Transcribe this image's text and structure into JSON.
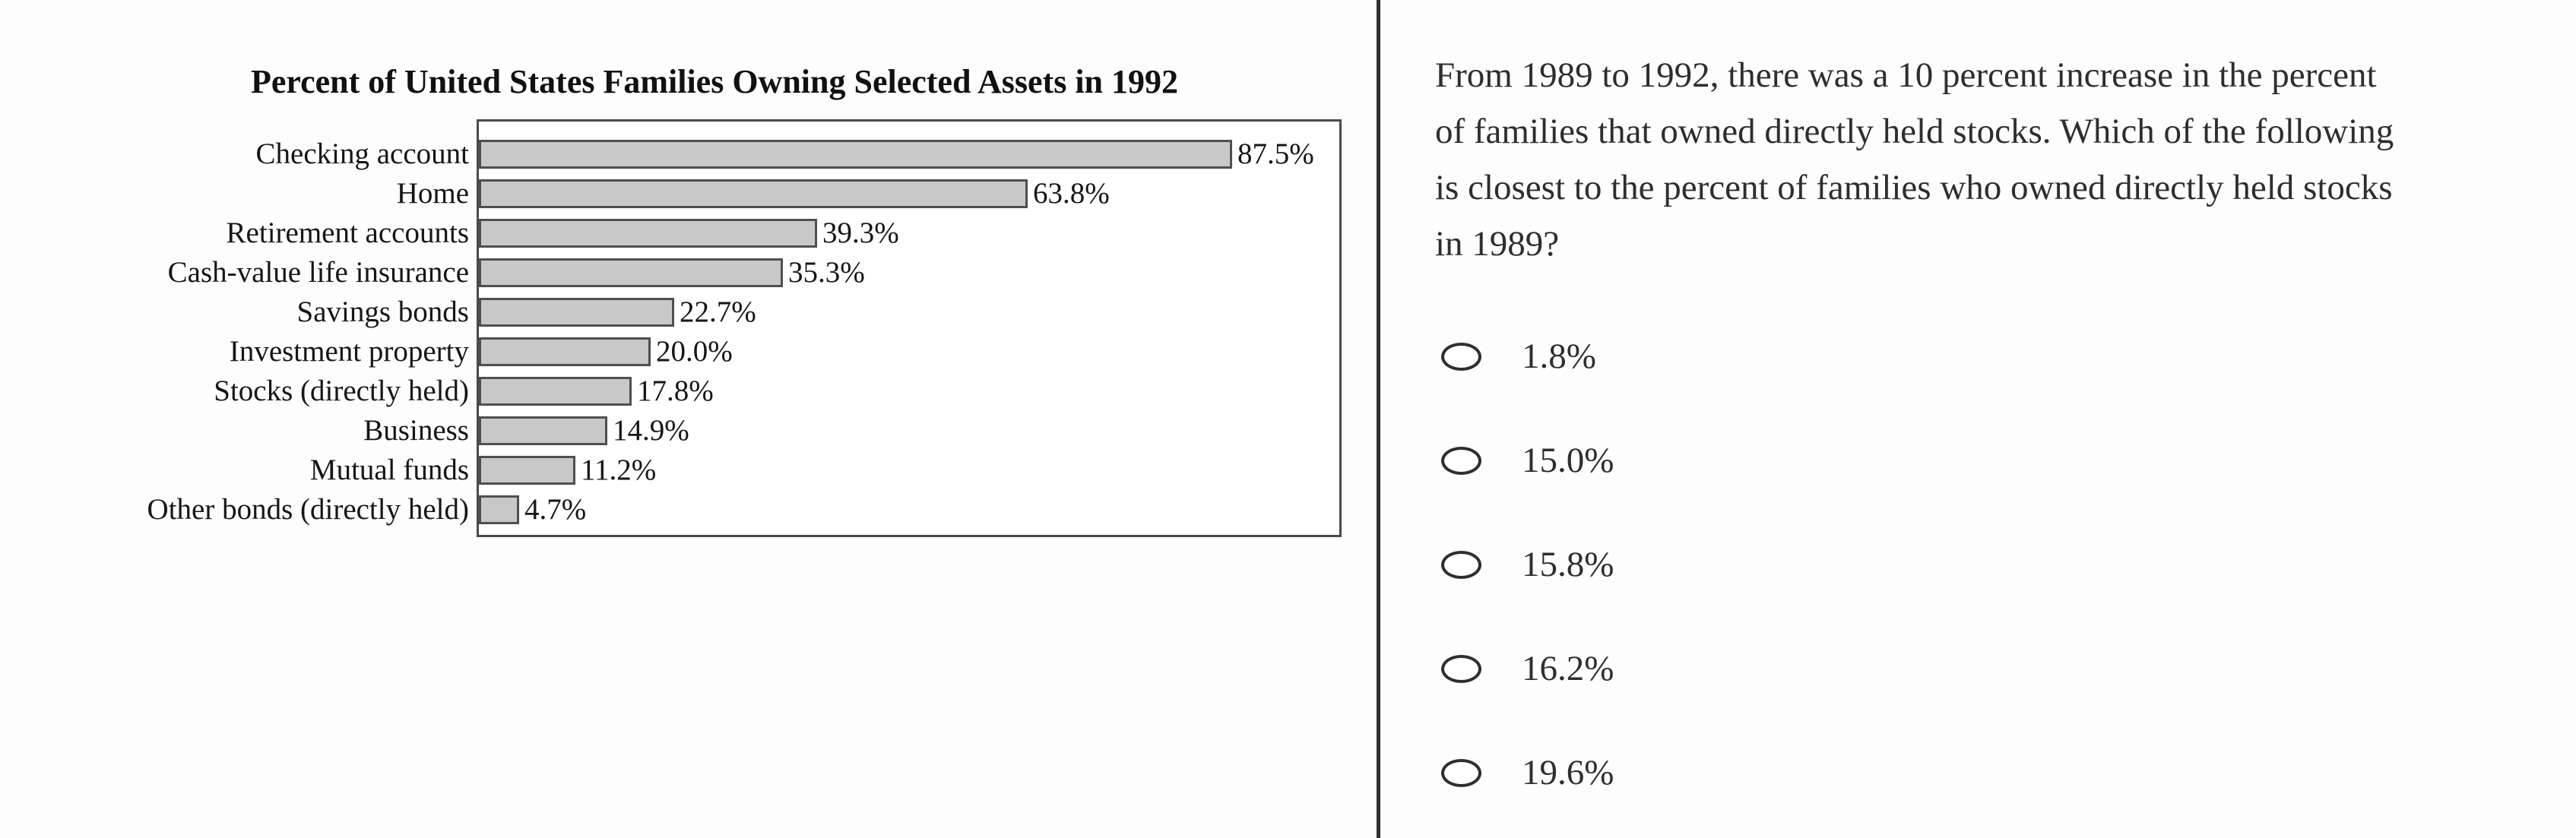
{
  "page": {
    "background": "#fdfdfd",
    "divider_color": "#2f2f2f"
  },
  "chart_data": {
    "type": "bar",
    "orientation": "horizontal",
    "title": "Percent of United States Families Owning Selected Assets in 1992",
    "categories": [
      "Checking account",
      "Home",
      "Retirement accounts",
      "Cash-value life insurance",
      "Savings bonds",
      "Investment property",
      "Stocks (directly held)",
      "Business",
      "Mutual funds",
      "Other bonds (directly held)"
    ],
    "values": [
      87.5,
      63.8,
      39.3,
      35.3,
      22.7,
      20.0,
      17.8,
      14.9,
      11.2,
      4.7
    ],
    "value_labels": [
      "87.5%",
      "63.8%",
      "39.3%",
      "35.3%",
      "22.7%",
      "20.0%",
      "17.8%",
      "14.9%",
      "11.2%",
      "4.7%"
    ],
    "xlabel": "",
    "ylabel": "",
    "xlim": [
      0,
      100
    ],
    "grid": false,
    "legend": false,
    "bar_color": "#c8c8c8",
    "bar_border_color": "#4f4f4f"
  },
  "question": {
    "full_text": "From 1989 to 1992, there was a 10 percent increase in the percent of families that owned directly held stocks. Which of the following is closest to the percent of families who owned directly held stocks in 1989?",
    "lines": [
      "From 1989 to 1992, there was a 10 percent increase in the percent",
      "of families that owned directly held stocks. Which of the following",
      "is closest to the percent of families who owned directly held stocks",
      "in 1989?"
    ]
  },
  "options": [
    {
      "label": "1.8%",
      "selected": false
    },
    {
      "label": "15.0%",
      "selected": false
    },
    {
      "label": "15.8%",
      "selected": false
    },
    {
      "label": "16.2%",
      "selected": false
    },
    {
      "label": "19.6%",
      "selected": false
    }
  ]
}
